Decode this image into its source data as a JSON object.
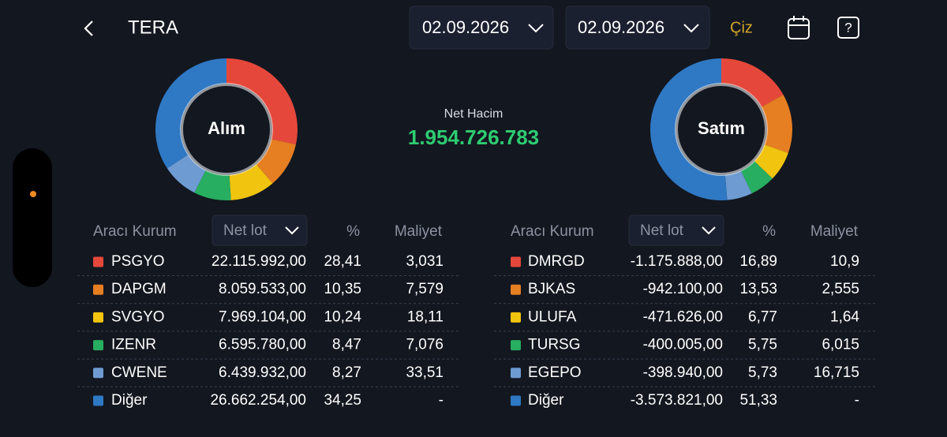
{
  "header": {
    "title": "TERA",
    "date_from": "02.09.2026",
    "date_to": "02.09.2026",
    "draw_button": "Çiz"
  },
  "net_volume": {
    "label": "Net Hacim",
    "value": "1.954.726.783"
  },
  "buy": {
    "label": "Alım",
    "columns": [
      "Aracı Kurum",
      "Net lot",
      "%",
      "Maliyet"
    ],
    "colors": [
      "#e5483b",
      "#e67e22",
      "#f1c40f",
      "#27ae60",
      "#6e9bd1",
      "#2f78c4"
    ],
    "rows": [
      [
        "PSGYO",
        "22.115.992,00",
        "28,41",
        "3,031"
      ],
      [
        "DAPGM",
        "8.059.533,00",
        "10,35",
        "7,579"
      ],
      [
        "SVGYO",
        "7.969.104,00",
        "10,24",
        "18,11"
      ],
      [
        "IZENR",
        "6.595.780,00",
        "8,47",
        "7,076"
      ],
      [
        "CWENE",
        "6.439.932,00",
        "8,27",
        "33,51"
      ],
      [
        "Diğer",
        "26.662.254,00",
        "34,25",
        "-"
      ]
    ]
  },
  "sell": {
    "label": "Satım",
    "columns": [
      "Aracı Kurum",
      "Net lot",
      "%",
      "Maliyet"
    ],
    "colors": [
      "#e5483b",
      "#e67e22",
      "#f1c40f",
      "#27ae60",
      "#6e9bd1",
      "#2f78c4"
    ],
    "rows": [
      [
        "DMRGD",
        "-1.175.888,00",
        "16,89",
        "10,9"
      ],
      [
        "BJKAS",
        "-942.100,00",
        "13,53",
        "2,555"
      ],
      [
        "ULUFA",
        "-471.626,00",
        "6,77",
        "1,64"
      ],
      [
        "TURSG",
        "-400.005,00",
        "5,75",
        "6,015"
      ],
      [
        "EGEPO",
        "-398.940,00",
        "5,73",
        "16,715"
      ],
      [
        "Diğer",
        "-3.573.821,00",
        "51,33",
        "-"
      ]
    ]
  }
}
